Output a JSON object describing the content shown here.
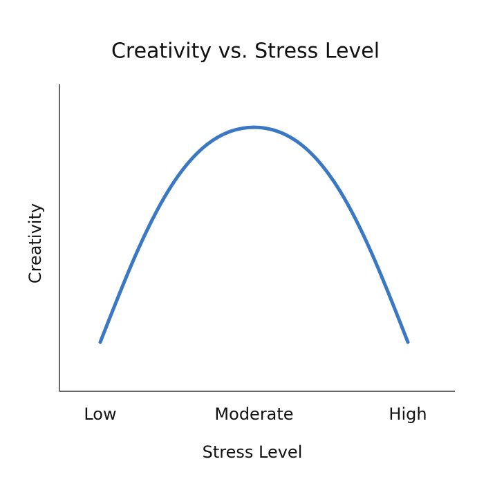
{
  "chart_data": {
    "type": "line",
    "title": "Creativity vs. Stress Level",
    "xlabel": "Stress Level",
    "ylabel": "Creativity",
    "categories": [
      "Low",
      "Moderate",
      "High"
    ],
    "series": [
      {
        "name": "Creativity",
        "color": "#3a78c3",
        "values": [
          16,
          86,
          16
        ]
      }
    ],
    "ylim": [
      0,
      100
    ]
  }
}
